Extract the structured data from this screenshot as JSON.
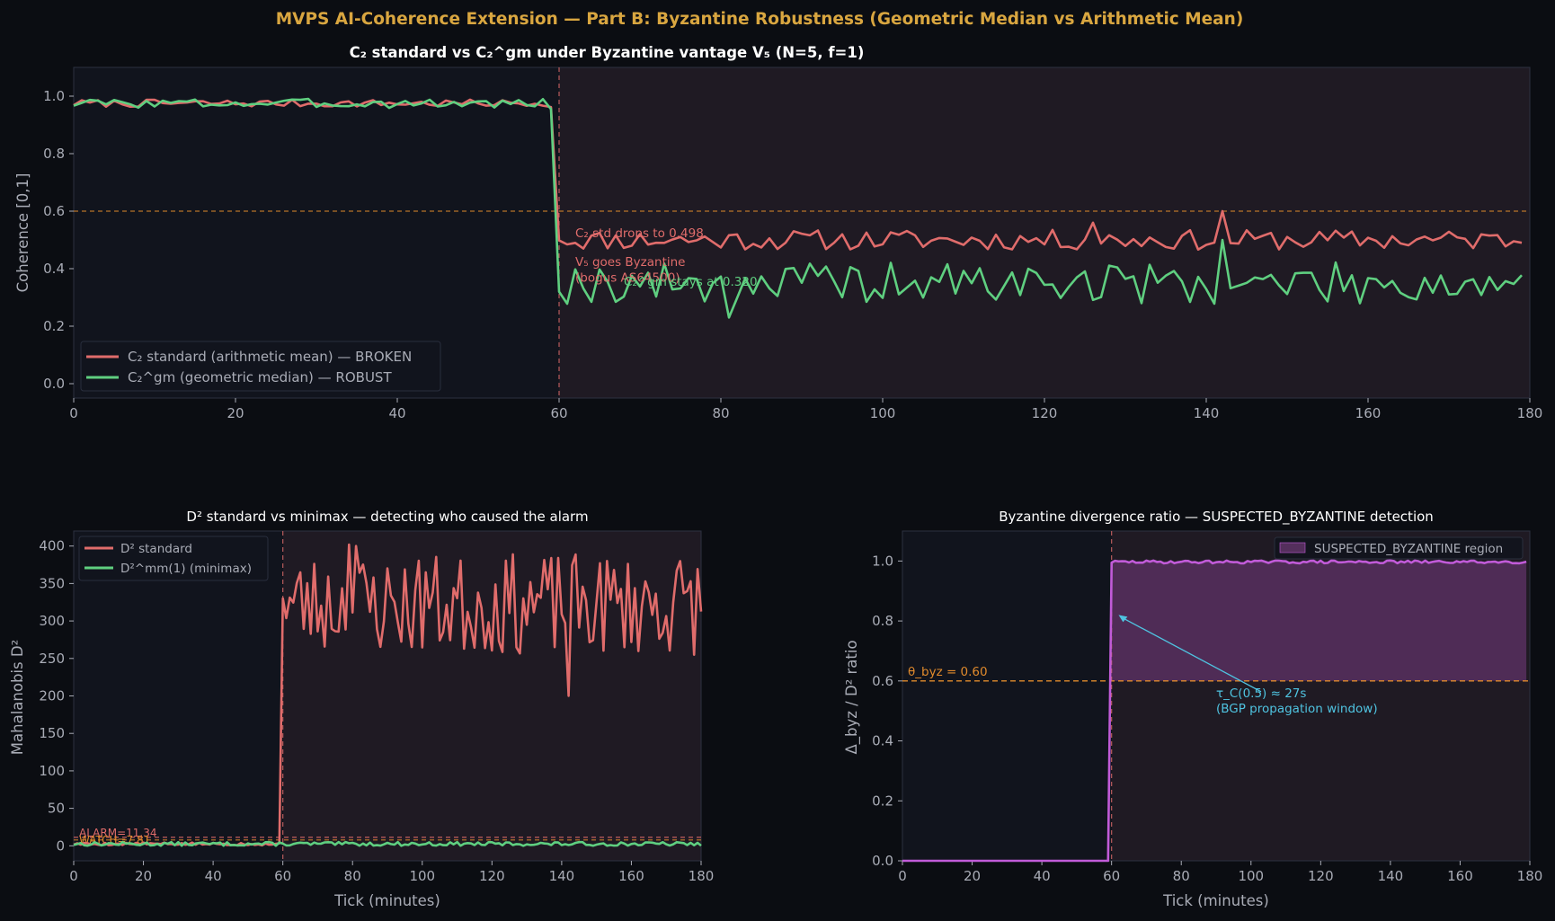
{
  "suptitle": "MVPS AI-Coherence Extension — Part B: Byzantine Robustness (Geometric Median vs Arithmetic Mean)",
  "colors": {
    "background": "#0b0d12",
    "panel_pre": "#11141d",
    "panel_post": "#1f1a23",
    "text": "#a9acb6",
    "title_gold": "#d9a640",
    "red": "#e06c6b",
    "green": "#5fcf80",
    "orange": "#e08a2c",
    "purple": "#c15bd8",
    "purple_fill": "#542f5c",
    "cyan": "#4fc3e0"
  },
  "chart_data": [
    {
      "id": "top",
      "type": "line",
      "title": "C₂ standard vs C₂^gm under Byzantine vantage V₅ (N=5, f=1)",
      "xlabel": "",
      "ylabel": "Coherence [0,1]",
      "xlim": [
        0,
        180
      ],
      "ylim": [
        -0.05,
        1.1
      ],
      "xticks": [
        0,
        20,
        40,
        60,
        80,
        100,
        120,
        140,
        160,
        180
      ],
      "yticks": [
        0.0,
        0.2,
        0.4,
        0.6,
        0.8,
        1.0
      ],
      "ytick_labels": [
        "0.0",
        "0.2",
        "0.4",
        "0.6",
        "0.8",
        "1.0"
      ],
      "event_tick": 60,
      "threshold": 0.6,
      "legend_position": "lower-left",
      "series": [
        {
          "name": "C₂ standard (arithmetic mean) — BROKEN",
          "color": "#e06c6b",
          "segments": [
            {
              "x0": 0,
              "x1": 59,
              "mean": 0.975,
              "amp": 0.008,
              "seed": 7
            },
            {
              "x0": 60,
              "x1": 179,
              "mean": 0.5,
              "amp": 0.022,
              "seed": 11
            }
          ],
          "overrides": {
            "60": 0.498,
            "142": 0.6,
            "126": 0.56
          }
        },
        {
          "name": "C₂^gm (geometric median) — ROBUST",
          "color": "#5fcf80",
          "segments": [
            {
              "x0": 0,
              "x1": 59,
              "mean": 0.975,
              "amp": 0.01,
              "seed": 3
            },
            {
              "x0": 60,
              "x1": 179,
              "mean": 0.35,
              "amp": 0.045,
              "seed": 19
            }
          ],
          "overrides": {
            "59": 0.955,
            "60": 0.32,
            "142": 0.5,
            "81": 0.23
          }
        }
      ],
      "annotations": [
        {
          "text": "C₂ std drops to 0.498",
          "x": 62,
          "y": 0.51,
          "color": "#e06c6b"
        },
        {
          "text": "V₅ goes Byzantine",
          "x": 62,
          "y": 0.41,
          "color": "#e06c6b"
        },
        {
          "text": "(bogus AS64500)",
          "x": 62,
          "y": 0.355,
          "color": "#e06c6b"
        },
        {
          "text": "C₂^gm stays at 0.320",
          "x": 68,
          "y": 0.34,
          "color": "#5fcf80"
        }
      ]
    },
    {
      "id": "bottom_left",
      "type": "line",
      "title": "D² standard vs minimax — detecting who caused the alarm",
      "xlabel": "Tick (minutes)",
      "ylabel": "Mahalanobis D²",
      "xlim": [
        0,
        180
      ],
      "ylim": [
        -20,
        420
      ],
      "xticks": [
        0,
        20,
        40,
        60,
        80,
        100,
        120,
        140,
        160,
        180
      ],
      "yticks": [
        0,
        50,
        100,
        150,
        200,
        250,
        300,
        350,
        400
      ],
      "ytick_labels": [
        "0",
        "50",
        "100",
        "150",
        "200",
        "250",
        "300",
        "350",
        "400"
      ],
      "event_tick": 60,
      "thresholds": [
        {
          "label": "ALARM=11.34",
          "value": 11.34,
          "color": "#e06c6b"
        },
        {
          "label": "WATCH=7.81",
          "value": 7.81,
          "color": "#e08a2c"
        }
      ],
      "legend_position": "upper-left",
      "series": [
        {
          "name": "D² standard",
          "color": "#e06c6b",
          "segments": [
            {
              "x0": 0,
              "x1": 59,
              "mean": 2.5,
              "amp": 1.2,
              "seed": 5
            },
            {
              "x0": 60,
              "x1": 180,
              "mean": 322,
              "amp": 42,
              "seed": 23
            }
          ],
          "overrides": {
            "60": 330,
            "79": 402,
            "81": 400,
            "142": 200,
            "101": 365
          }
        },
        {
          "name": "D²^mm(1) (minimax)",
          "color": "#5fcf80",
          "segments": [
            {
              "x0": 0,
              "x1": 180,
              "mean": 2.5,
              "amp": 1.6,
              "seed": 13
            }
          ],
          "overrides": {}
        }
      ]
    },
    {
      "id": "bottom_right",
      "type": "area",
      "title": "Byzantine divergence ratio — SUSPECTED_BYZANTINE detection",
      "xlabel": "Tick (minutes)",
      "ylabel": "Δ_byz / D² ratio",
      "xlim": [
        0,
        180
      ],
      "ylim": [
        0,
        1.1
      ],
      "xticks": [
        0,
        20,
        40,
        60,
        80,
        100,
        120,
        140,
        160,
        180
      ],
      "yticks": [
        0.0,
        0.2,
        0.4,
        0.6,
        0.8,
        1.0
      ],
      "ytick_labels": [
        "0.0",
        "0.2",
        "0.4",
        "0.6",
        "0.8",
        "1.0"
      ],
      "event_tick": 60,
      "threshold": {
        "label": "θ_byz = 0.60",
        "value": 0.6
      },
      "region_label": "SUSPECTED_BYZANTINE region",
      "legend_position": "upper-right",
      "series": [
        {
          "name": "Δ_byz / D² ratio",
          "color": "#c15bd8",
          "segments": [
            {
              "x0": 0,
              "x1": 59,
              "mean": 0.0,
              "amp": 0.0,
              "seed": 1
            },
            {
              "x0": 60,
              "x1": 179,
              "mean": 0.997,
              "amp": 0.003,
              "seed": 29
            }
          ],
          "overrides": {}
        }
      ],
      "annotation": {
        "line1": "τ_C(0.5) ≈ 27s",
        "line2": "(BGP propagation window)",
        "text_x": 90,
        "text_y": 0.57,
        "arrow_x": 62,
        "arrow_y": 0.82
      }
    }
  ]
}
